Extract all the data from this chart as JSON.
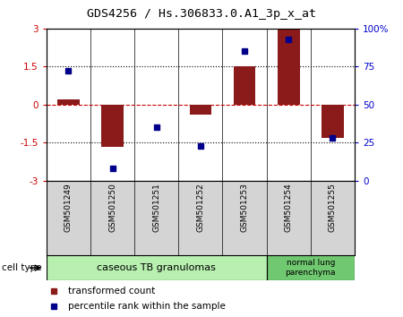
{
  "title": "GDS4256 / Hs.306833.0.A1_3p_x_at",
  "samples": [
    "GSM501249",
    "GSM501250",
    "GSM501251",
    "GSM501252",
    "GSM501253",
    "GSM501254",
    "GSM501255"
  ],
  "transformed_count": [
    0.22,
    -1.65,
    0.0,
    -0.38,
    1.5,
    3.0,
    -1.3
  ],
  "percentile_rank": [
    72,
    8,
    35,
    23,
    85,
    93,
    28
  ],
  "ylim_left": [
    -3,
    3
  ],
  "ylim_right": [
    0,
    100
  ],
  "yticks_left": [
    -3,
    -1.5,
    0,
    1.5,
    3
  ],
  "yticks_right": [
    0,
    25,
    50,
    75,
    100
  ],
  "ytick_labels_left": [
    "-3",
    "-1.5",
    "0",
    "1.5",
    "3"
  ],
  "ytick_labels_right": [
    "0",
    "25",
    "50",
    "75",
    "100%"
  ],
  "hlines": [
    1.5,
    -1.5
  ],
  "bar_color": "#8B1A1A",
  "dot_color": "#00008B",
  "bar_width": 0.5,
  "group1_label": "caseous TB granulomas",
  "group1_count": 5,
  "group1_color": "#b8f0b0",
  "group2_label": "normal lung\nparenchyma",
  "group2_count": 2,
  "group2_color": "#70c870",
  "cell_type_label": "cell type",
  "legend_red": "transformed count",
  "legend_blue": "percentile rank within the sample"
}
